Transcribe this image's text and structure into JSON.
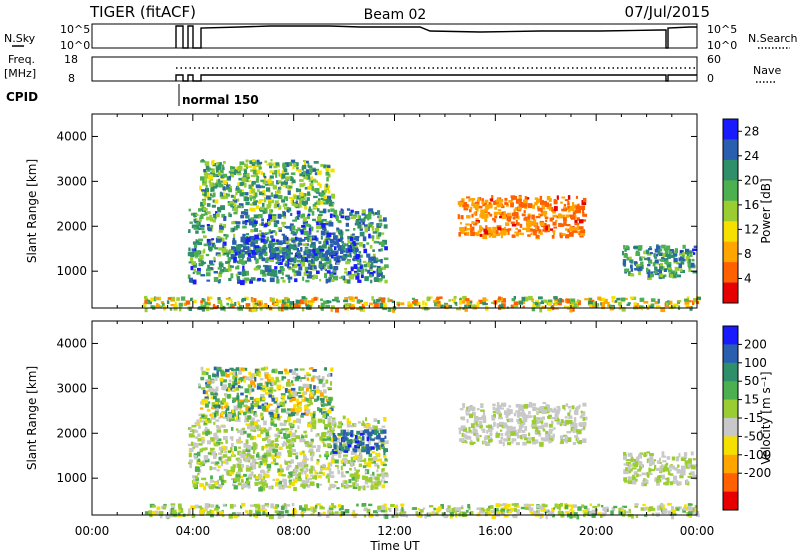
{
  "header": {
    "title": "TIGER (fitACF)",
    "beam": "Beam 02",
    "date": "07/Jul/2015"
  },
  "strip_panels": {
    "nsky": {
      "label": "N.Sky",
      "tick_top": "10^5",
      "tick_bottom": "10^0",
      "right_label": "N.Search",
      "right_tick_top": "10^5",
      "right_tick_bottom": "10^0"
    },
    "freq": {
      "label_line1": "Freq.",
      "label_line2": "[MHz]",
      "tick_top": "18",
      "tick_bottom": "8",
      "right_label": "Nave",
      "right_tick_top": "60",
      "right_tick_bottom": "0"
    },
    "cpid": {
      "label": "CPID",
      "mode": "normal 150",
      "mode_start_hour": 3.45
    }
  },
  "chart_data": [
    {
      "type": "heatmap",
      "name": "power",
      "ylabel": "Slant Range [km]",
      "ylim": [
        180,
        4500
      ],
      "yticks": [
        "1000",
        "2000",
        "3000",
        "4000"
      ],
      "xlim": [
        0,
        24
      ],
      "colorbar_label": "Power [dB]",
      "colorbar_ticks": [
        "4",
        "8",
        "12",
        "16",
        "20",
        "24",
        "28"
      ],
      "colorbar_range": [
        0,
        30
      ],
      "colors": [
        "#1a1aff",
        "#2a5fb0",
        "#2f8f6a",
        "#4caf50",
        "#9acd32",
        "#f5e000",
        "#ffa500",
        "#ff6000",
        "#e60000"
      ],
      "regions": [
        {
          "x": [
            3.8,
            11.6
          ],
          "y": [
            800,
            2400
          ],
          "level": [
            0.45,
            1.0
          ]
        },
        {
          "x": [
            4.2,
            9.5
          ],
          "y": [
            2400,
            3500
          ],
          "level": [
            0.35,
            0.85
          ]
        },
        {
          "x": [
            5.5,
            10.5
          ],
          "y": [
            1300,
            1800
          ],
          "level": [
            0.75,
            1.0
          ]
        },
        {
          "x": [
            14.5,
            19.5
          ],
          "y": [
            1800,
            2700
          ],
          "level": [
            0.05,
            0.3
          ]
        },
        {
          "x": [
            21.0,
            23.9
          ],
          "y": [
            900,
            1600
          ],
          "level": [
            0.5,
            0.95
          ]
        },
        {
          "x": [
            2.0,
            24.0
          ],
          "y": [
            180,
            450
          ],
          "level": [
            0.1,
            0.8
          ]
        }
      ]
    },
    {
      "type": "heatmap",
      "name": "velocity",
      "ylabel": "Slant Range [km]",
      "ylim": [
        180,
        4500
      ],
      "yticks": [
        "1000",
        "2000",
        "3000",
        "4000"
      ],
      "xlim": [
        0,
        24
      ],
      "xticks": [
        "00:00",
        "04:00",
        "08:00",
        "12:00",
        "16:00",
        "20:00",
        "00:00"
      ],
      "xlabel": "Time UT",
      "colorbar_label": "Velocity [m s⁻¹]",
      "colorbar_ticks": [
        "200",
        "100",
        "50",
        "15",
        "-15",
        "-50",
        "-100",
        "-200"
      ],
      "colorbar_range": [
        -250,
        250
      ],
      "colors": [
        "#1a1aff",
        "#2a5fb0",
        "#2f8f6a",
        "#4caf50",
        "#9acd32",
        "#c8c8c8",
        "#f5e000",
        "#ffa500",
        "#ff6000",
        "#e60000"
      ],
      "regions": [
        {
          "x": [
            3.8,
            11.6
          ],
          "y": [
            800,
            2400
          ],
          "level": [
            0.35,
            0.65
          ]
        },
        {
          "x": [
            4.2,
            9.5
          ],
          "y": [
            2400,
            3500
          ],
          "level": [
            0.2,
            0.9
          ]
        },
        {
          "x": [
            9.5,
            11.6
          ],
          "y": [
            1600,
            2100
          ],
          "level": [
            0.75,
            1.0
          ]
        },
        {
          "x": [
            14.5,
            19.5
          ],
          "y": [
            1800,
            2700
          ],
          "level": [
            0.4,
            0.55
          ]
        },
        {
          "x": [
            21.0,
            23.9
          ],
          "y": [
            900,
            1600
          ],
          "level": [
            0.45,
            0.55
          ]
        },
        {
          "x": [
            2.0,
            24.0
          ],
          "y": [
            180,
            450
          ],
          "level": [
            0.3,
            0.7
          ]
        }
      ]
    }
  ]
}
